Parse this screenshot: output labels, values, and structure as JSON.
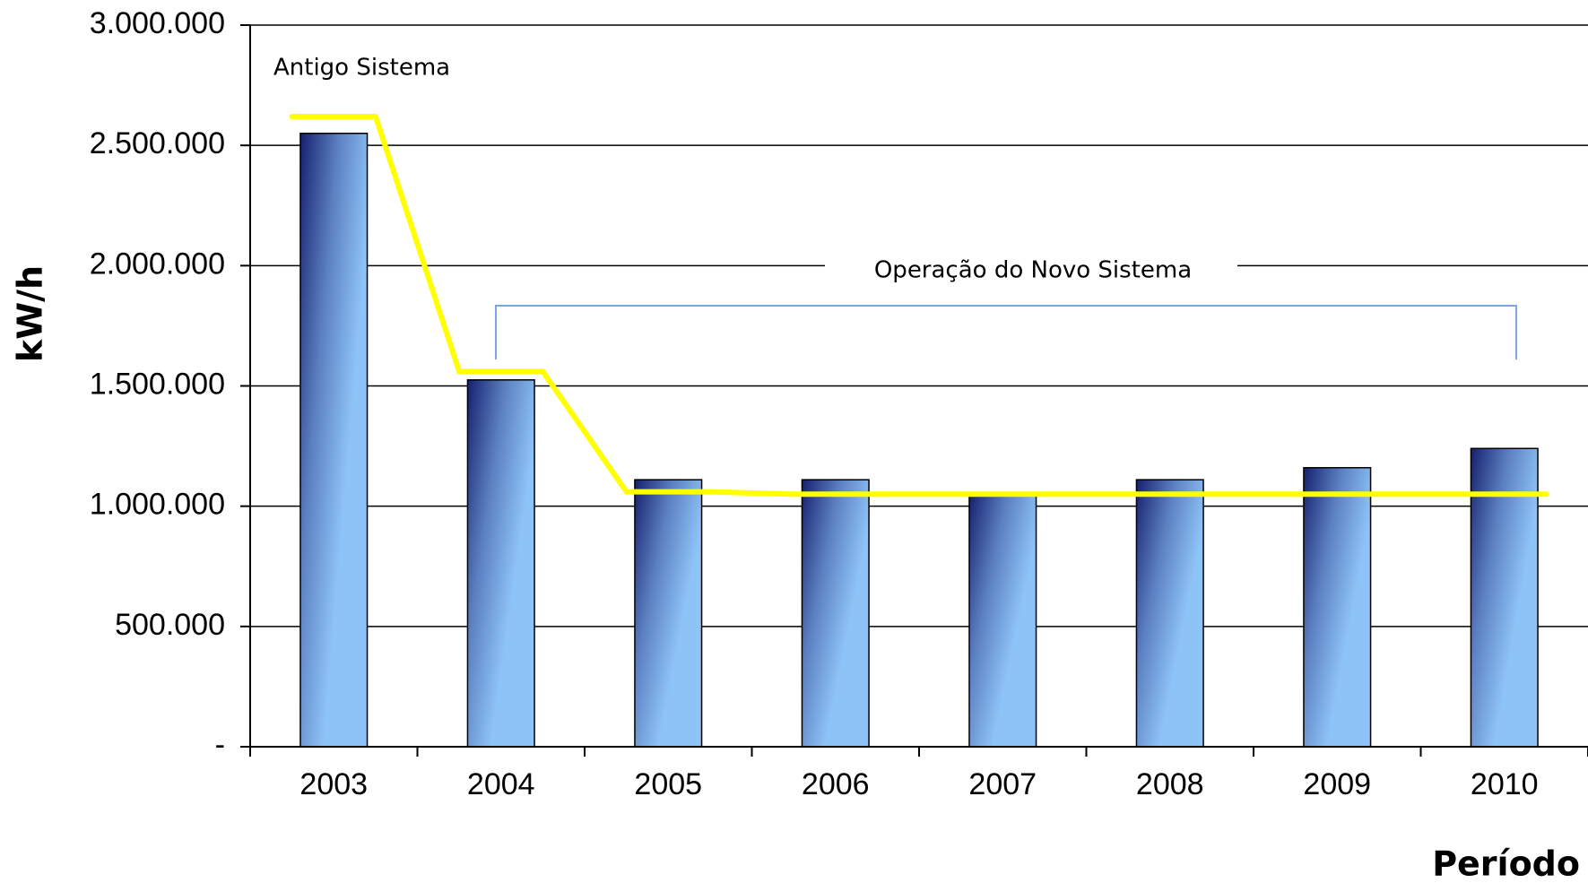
{
  "chart_data": {
    "type": "bar",
    "y_label": "kW/h",
    "x_label": "Período",
    "annotations": [
      "Antigo Sistema",
      "Operação do Novo Sistema"
    ],
    "categories": [
      "2003",
      "2004",
      "2005",
      "2006",
      "2007",
      "2008",
      "2009",
      "2010"
    ],
    "values": [
      2550000,
      1525000,
      1110000,
      1110000,
      1050000,
      1110000,
      1160000,
      1240000
    ],
    "color": "#8ec3f7",
    "line": {
      "color": "#ffff00",
      "values": [
        2620000,
        1560000,
        1060000,
        1050000,
        1050000,
        1050000,
        1050000,
        1050000
      ]
    },
    "ylim": [
      0,
      3000000
    ],
    "yticks": [
      {
        "value": 0,
        "label": "-"
      },
      {
        "value": 500000,
        "label": "500.000"
      },
      {
        "value": 1000000,
        "label": "1.000.000"
      },
      {
        "value": 1500000,
        "label": "1.500.000"
      },
      {
        "value": 2000000,
        "label": "2.000.000"
      },
      {
        "value": 2500000,
        "label": "2.500.000"
      },
      {
        "value": 3000000,
        "label": "3.000.000"
      }
    ],
    "grid": true
  }
}
